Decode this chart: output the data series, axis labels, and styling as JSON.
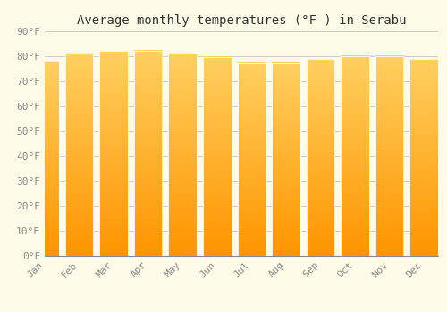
{
  "title": "Average monthly temperatures (°F ) in Serabu",
  "months": [
    "Jan",
    "Feb",
    "Mar",
    "Apr",
    "May",
    "Jun",
    "Jul",
    "Aug",
    "Sep",
    "Oct",
    "Nov",
    "Dec"
  ],
  "values": [
    78.2,
    81.0,
    82.0,
    82.2,
    81.0,
    79.8,
    77.3,
    77.2,
    78.8,
    80.0,
    80.0,
    78.8
  ],
  "bar_color_mid": "#FFA500",
  "bar_color_top": "#FFD050",
  "bar_color_bottom": "#FF9800",
  "background_color": "#FEFCE8",
  "grid_color": "#CCCCCC",
  "ylim": [
    0,
    90
  ],
  "yticks": [
    0,
    10,
    20,
    30,
    40,
    50,
    60,
    70,
    80,
    90
  ],
  "ytick_labels": [
    "0°F",
    "10°F",
    "20°F",
    "30°F",
    "40°F",
    "50°F",
    "60°F",
    "70°F",
    "80°F",
    "90°F"
  ],
  "title_fontsize": 10,
  "tick_fontsize": 8,
  "tick_color": "#888888",
  "font_family": "monospace",
  "bar_width": 0.82
}
